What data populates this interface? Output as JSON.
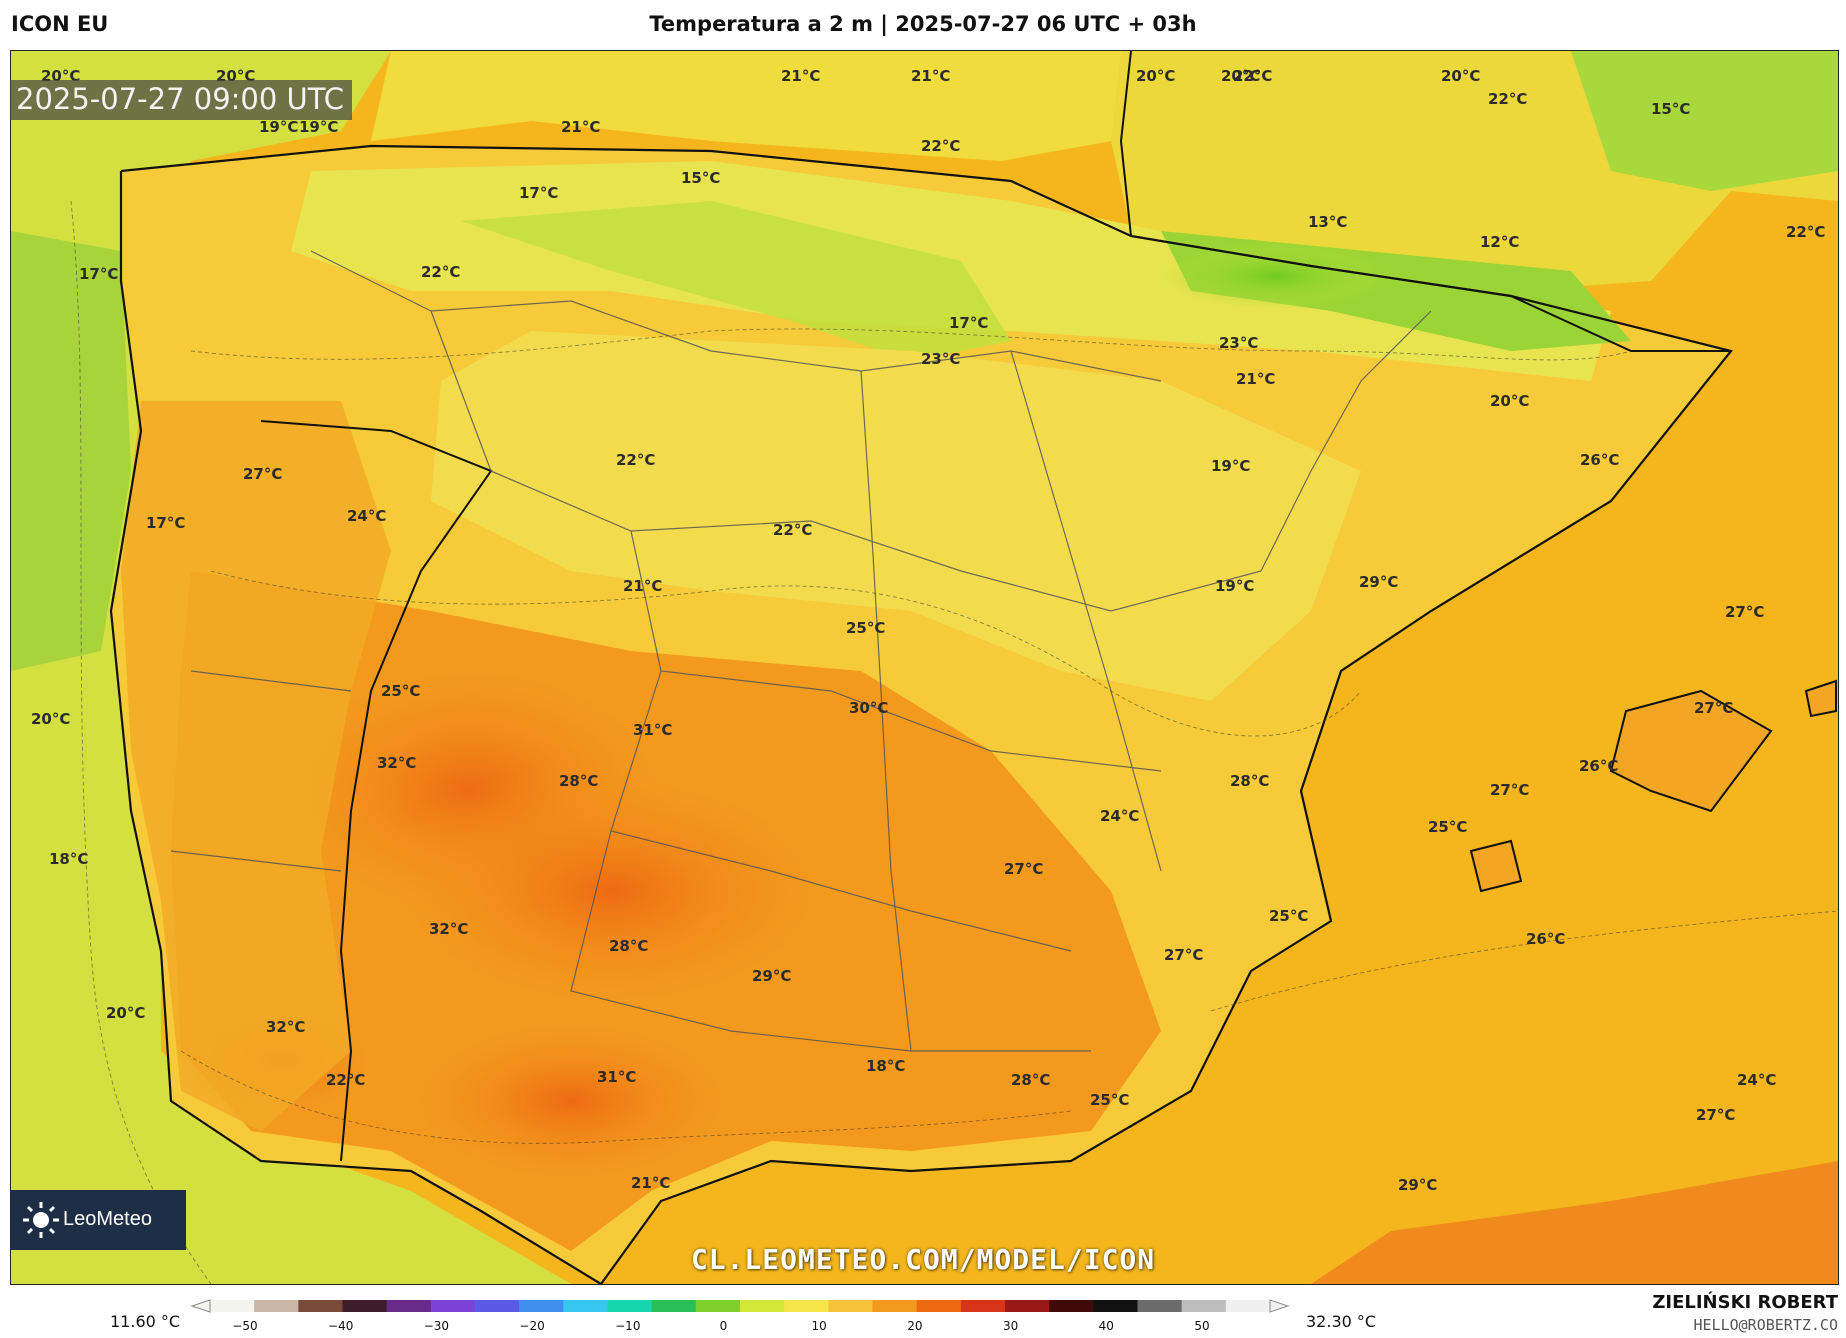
{
  "header": {
    "model": "ICON EU",
    "title": "Temperatura a 2 m | 2025-07-27 06 UTC + 03h"
  },
  "map": {
    "valid_time": "2025-07-27 09:00 UTC",
    "watermark": "CL.LEOMETEO.COM/MODEL/ICON",
    "logo": "LeoMeteo",
    "temperature_labels": [
      "20°C",
      "20°C",
      "21°C",
      "21°C",
      "20°C",
      "20°C",
      "22°C",
      "20°C",
      "22°C",
      "19°C",
      "15°C",
      "19°C",
      "21°C",
      "22°C",
      "15°C",
      "17°C",
      "13°C",
      "12°C",
      "22°C",
      "17°C",
      "22°C",
      "17°C",
      "23°C",
      "21°C",
      "23°C",
      "20°C",
      "19°C",
      "27°C",
      "22°C",
      "26°C",
      "24°C",
      "17°C",
      "22°C",
      "21°C",
      "19°C",
      "29°C",
      "27°C",
      "25°C",
      "30°C",
      "25°C",
      "27°C",
      "20°C",
      "31°C",
      "32°C",
      "28°C",
      "26°C",
      "28°C",
      "27°C",
      "24°C",
      "25°C",
      "18°C",
      "27°C",
      "32°C",
      "25°C",
      "28°C",
      "26°C",
      "27°C",
      "29°C",
      "20°C",
      "32°C",
      "18°C",
      "22°C",
      "31°C",
      "28°C",
      "25°C",
      "24°C",
      "27°C",
      "21°C",
      "29°C"
    ]
  },
  "colorbar": {
    "min_label": "11.60 °C",
    "max_label": "32.30 °C",
    "ticks": [
      "−50",
      "−40",
      "−30",
      "−20",
      "−10",
      "0",
      "10",
      "20",
      "30",
      "40",
      "50"
    ],
    "colors": [
      "#f5f5f0",
      "#c8b6a6",
      "#7a4a3a",
      "#3d1d2a",
      "#6a2a8a",
      "#7c44d6",
      "#5a5ae6",
      "#3f8ff0",
      "#37c6f0",
      "#18d6b0",
      "#2bbf5a",
      "#7ed02a",
      "#d4e83a",
      "#f7e64a",
      "#f6c23a",
      "#f39a1e",
      "#ee6a12",
      "#d8341a",
      "#9a1818",
      "#400a0a",
      "#111111",
      "#6b6b6b",
      "#bdbdbd",
      "#f0f0f0"
    ]
  },
  "footer": {
    "author": "ZIELIŃSKI ROBERT",
    "contact": "HELLO@ROBERTZ.CO"
  }
}
